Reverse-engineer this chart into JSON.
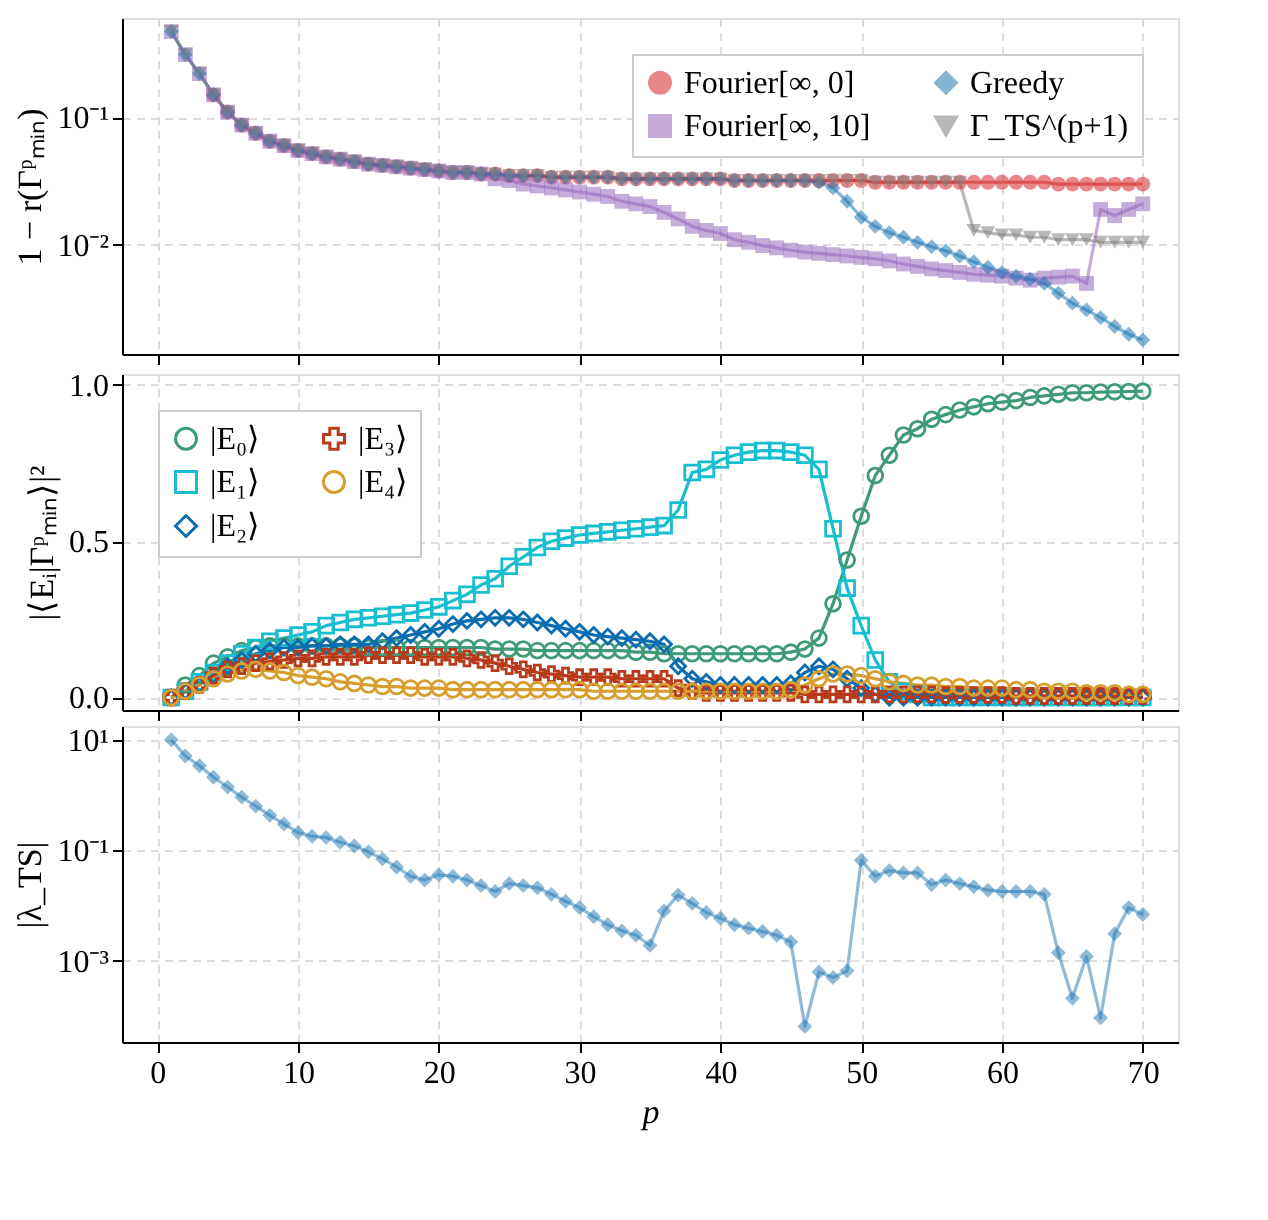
{
  "chart_data": [
    {
      "type": "line",
      "ylabel": "1 − r(Γᵖₘᵢₙ)",
      "log": "y",
      "grid": true,
      "legend": "top right",
      "tick_labels": "y",
      "x": [
        1,
        2,
        3,
        4,
        5,
        6,
        7,
        8,
        9,
        10,
        11,
        12,
        13,
        14,
        15,
        16,
        17,
        18,
        19,
        20,
        21,
        22,
        23,
        24,
        25,
        26,
        27,
        28,
        29,
        30,
        31,
        32,
        33,
        34,
        35,
        36,
        37,
        38,
        39,
        40,
        41,
        42,
        43,
        44,
        45,
        46,
        47,
        48,
        49,
        50,
        51,
        52,
        53,
        54,
        55,
        56,
        57,
        58,
        59,
        60,
        61,
        62,
        63,
        64,
        65,
        66,
        67,
        68,
        69,
        70
      ],
      "xlim": [
        -2.5,
        72.5
      ],
      "xticks": [
        0,
        10,
        20,
        30,
        40,
        50,
        60,
        70
      ],
      "ylim": [
        0.0014,
        0.6
      ],
      "yticks": [
        {
          "value": 0.1,
          "label": "10⁻¹"
        },
        {
          "value": 0.01,
          "label": "10⁻²"
        }
      ],
      "series": [
        {
          "name": "Fourier[∞, 0]",
          "color": "#d62728",
          "marker": "circle",
          "values": [
            null,
            null,
            null,
            0.15,
            0.11,
            0.087,
            0.075,
            0.065,
            0.06,
            0.055,
            0.052,
            0.049,
            0.047,
            0.045,
            0.043,
            0.042,
            0.041,
            0.04,
            0.039,
            0.038,
            0.037,
            0.037,
            0.036,
            0.036,
            0.035,
            0.035,
            0.035,
            0.034,
            0.034,
            0.034,
            0.034,
            0.034,
            0.033,
            0.033,
            0.033,
            0.033,
            0.033,
            0.033,
            0.033,
            0.033,
            0.032,
            0.032,
            0.032,
            0.032,
            0.032,
            0.032,
            0.032,
            0.032,
            0.032,
            0.032,
            0.031,
            0.031,
            0.031,
            0.031,
            0.031,
            0.031,
            0.031,
            0.031,
            0.031,
            0.031,
            0.031,
            0.031,
            0.031,
            0.03,
            0.03,
            0.03,
            0.03,
            0.03,
            0.03,
            0.03
          ]
        },
        {
          "name": "Fourier[∞, 10]",
          "color": "#9467bd",
          "marker": "square",
          "values": [
            0.47,
            0.31,
            0.22,
            0.15,
            0.11,
            0.087,
            0.075,
            0.065,
            0.06,
            0.055,
            0.052,
            0.049,
            0.047,
            0.045,
            0.043,
            0.042,
            0.041,
            0.04,
            0.039,
            0.038,
            0.037,
            0.037,
            0.036,
            0.033,
            0.032,
            0.03,
            0.029,
            0.028,
            0.027,
            0.026,
            0.025,
            0.024,
            0.022,
            0.021,
            0.02,
            0.018,
            0.016,
            0.014,
            0.013,
            0.0123,
            0.011,
            0.0105,
            0.0099,
            0.0095,
            0.0091,
            0.0088,
            0.0086,
            0.0084,
            0.0082,
            0.008,
            0.0078,
            0.0075,
            0.0071,
            0.0068,
            0.0065,
            0.0063,
            0.0061,
            0.0059,
            0.0058,
            0.0057,
            0.0055,
            0.0053,
            0.0055,
            0.0056,
            0.0057,
            0.005,
            0.019,
            0.017,
            0.019,
            0.021
          ]
        },
        {
          "name": "Greedy",
          "color": "#1f77b4",
          "marker": "diamond",
          "values": [
            0.47,
            0.31,
            0.22,
            0.15,
            0.11,
            0.087,
            0.075,
            0.065,
            0.06,
            0.055,
            0.052,
            0.049,
            0.047,
            0.045,
            0.043,
            0.042,
            0.041,
            0.04,
            0.039,
            0.038,
            0.037,
            0.037,
            0.036,
            0.036,
            0.035,
            0.035,
            0.035,
            0.034,
            0.034,
            0.034,
            0.034,
            0.034,
            0.033,
            0.033,
            0.033,
            0.033,
            0.033,
            0.033,
            0.033,
            0.033,
            0.032,
            0.032,
            0.032,
            0.032,
            0.032,
            0.032,
            0.031,
            0.028,
            0.022,
            0.0165,
            0.014,
            0.0125,
            0.0115,
            0.0105,
            0.0097,
            0.009,
            0.0082,
            0.0074,
            0.0067,
            0.0061,
            0.0057,
            0.0054,
            0.005,
            0.0042,
            0.0035,
            0.0031,
            0.0027,
            0.0023,
            0.002,
            0.0018
          ]
        },
        {
          "name": "Γ_TS^(p+1)",
          "color": "#7f7f7f",
          "marker": "triangle",
          "values": [
            0.47,
            0.31,
            0.22,
            0.15,
            0.11,
            0.087,
            0.075,
            0.065,
            0.06,
            0.055,
            0.052,
            0.049,
            0.047,
            0.045,
            0.043,
            0.042,
            0.041,
            0.04,
            0.039,
            0.038,
            0.037,
            0.037,
            0.036,
            0.036,
            0.035,
            0.035,
            0.035,
            0.034,
            0.034,
            0.034,
            0.034,
            0.034,
            0.033,
            0.033,
            0.033,
            0.033,
            0.033,
            0.033,
            0.033,
            0.033,
            0.032,
            0.032,
            0.032,
            0.032,
            0.032,
            0.032,
            0.032,
            0.032,
            0.032,
            0.032,
            0.031,
            0.031,
            0.031,
            0.031,
            0.031,
            0.031,
            0.031,
            0.013,
            0.0125,
            0.012,
            0.012,
            0.0115,
            0.0115,
            0.011,
            0.011,
            0.011,
            0.0105,
            0.0105,
            0.0105,
            0.0105
          ]
        }
      ]
    },
    {
      "type": "line",
      "ylabel": "|⟨Eᵢ|Γᵖₘᵢₙ⟩|²",
      "grid": true,
      "legend": "top left",
      "tick_labels": "y",
      "x": [
        1,
        2,
        3,
        4,
        5,
        6,
        7,
        8,
        9,
        10,
        11,
        12,
        13,
        14,
        15,
        16,
        17,
        18,
        19,
        20,
        21,
        22,
        23,
        24,
        25,
        26,
        27,
        28,
        29,
        30,
        31,
        32,
        33,
        34,
        35,
        36,
        37,
        38,
        39,
        40,
        41,
        42,
        43,
        44,
        45,
        46,
        47,
        48,
        49,
        50,
        51,
        52,
        53,
        54,
        55,
        56,
        57,
        58,
        59,
        60,
        61,
        62,
        63,
        64,
        65,
        66,
        67,
        68,
        69,
        70
      ],
      "xlim": [
        -2.5,
        72.5
      ],
      "xticks": [
        0,
        10,
        20,
        30,
        40,
        50,
        60,
        70
      ],
      "ylim": [
        -0.04,
        1.035
      ],
      "yticks": [
        {
          "value": 0,
          "label": "0.0"
        },
        0.5,
        {
          "value": 1,
          "label": "1.0"
        }
      ],
      "series": [
        {
          "name": "|E₀⟩",
          "color": "#3f9a78",
          "marker": "circle",
          "values": [
            0,
            0.04,
            0.07,
            0.11,
            0.13,
            0.15,
            0.16,
            0.165,
            0.165,
            0.165,
            0.165,
            0.165,
            0.165,
            0.165,
            0.16,
            0.16,
            0.16,
            0.16,
            0.16,
            0.16,
            0.16,
            0.16,
            0.16,
            0.155,
            0.155,
            0.155,
            0.15,
            0.15,
            0.15,
            0.15,
            0.15,
            0.15,
            0.15,
            0.145,
            0.145,
            0.14,
            0.14,
            0.14,
            0.14,
            0.14,
            0.14,
            0.14,
            0.14,
            0.14,
            0.145,
            0.155,
            0.19,
            0.3,
            0.44,
            0.58,
            0.71,
            0.775,
            0.84,
            0.86,
            0.89,
            0.905,
            0.92,
            0.93,
            0.94,
            0.945,
            0.95,
            0.96,
            0.965,
            0.97,
            0.975,
            0.975,
            0.977,
            0.978,
            0.979,
            0.98
          ]
        },
        {
          "name": "|E₁⟩",
          "color": "#17becf",
          "marker": "square",
          "values": [
            0,
            0.02,
            0.05,
            0.08,
            0.11,
            0.14,
            0.16,
            0.18,
            0.19,
            0.2,
            0.21,
            0.23,
            0.24,
            0.25,
            0.255,
            0.26,
            0.265,
            0.27,
            0.28,
            0.29,
            0.31,
            0.33,
            0.36,
            0.38,
            0.42,
            0.45,
            0.48,
            0.5,
            0.51,
            0.52,
            0.525,
            0.53,
            0.535,
            0.54,
            0.545,
            0.55,
            0.6,
            0.72,
            0.73,
            0.76,
            0.775,
            0.785,
            0.79,
            0.79,
            0.785,
            0.775,
            0.73,
            0.54,
            0.35,
            0.23,
            0.12,
            0.05,
            0.02,
            0.01,
            0,
            0,
            0,
            0,
            0,
            0,
            0,
            0,
            0,
            0,
            0,
            0,
            0,
            0,
            0,
            0
          ]
        },
        {
          "name": "|E₂⟩",
          "color": "#0b6db0",
          "marker": "diamond",
          "values": [
            0,
            0.02,
            0.04,
            0.07,
            0.1,
            0.12,
            0.14,
            0.15,
            0.16,
            0.16,
            0.165,
            0.165,
            0.17,
            0.17,
            0.17,
            0.18,
            0.19,
            0.2,
            0.21,
            0.22,
            0.235,
            0.245,
            0.25,
            0.255,
            0.255,
            0.25,
            0.24,
            0.23,
            0.22,
            0.21,
            0.2,
            0.195,
            0.19,
            0.185,
            0.18,
            0.17,
            0.1,
            0.06,
            0.05,
            0.04,
            0.04,
            0.04,
            0.04,
            0.04,
            0.045,
            0.08,
            0.1,
            0.09,
            0.06,
            0.03,
            0.01,
            0,
            0,
            0,
            0,
            0,
            0,
            0,
            0,
            0,
            0,
            0,
            0,
            0,
            0,
            0,
            0,
            0,
            0,
            0
          ]
        },
        {
          "name": "|E₃⟩",
          "color": "#b83a1b",
          "marker": "cross",
          "values": [
            0,
            0.02,
            0.04,
            0.07,
            0.09,
            0.1,
            0.11,
            0.115,
            0.12,
            0.125,
            0.125,
            0.13,
            0.13,
            0.13,
            0.135,
            0.135,
            0.135,
            0.135,
            0.13,
            0.13,
            0.13,
            0.125,
            0.12,
            0.11,
            0.1,
            0.09,
            0.08,
            0.075,
            0.07,
            0.065,
            0.065,
            0.065,
            0.06,
            0.06,
            0.06,
            0.06,
            0.03,
            0.02,
            0.015,
            0.015,
            0.015,
            0.015,
            0.015,
            0.015,
            0.015,
            0.01,
            0.01,
            0.01,
            0.01,
            0.01,
            0.01,
            0.01,
            0.01,
            0.01,
            0.01,
            0.008,
            0.008,
            0.008,
            0.008,
            0.008,
            0.005,
            0.005,
            0.005,
            0.005,
            0.005,
            0.005,
            0.005,
            0.005,
            0.005,
            0.005
          ]
        },
        {
          "name": "|E₄⟩",
          "color": "#d69e2e",
          "marker": "circle",
          "values": [
            0,
            0.02,
            0.04,
            0.06,
            0.075,
            0.085,
            0.09,
            0.085,
            0.08,
            0.07,
            0.065,
            0.06,
            0.05,
            0.045,
            0.04,
            0.035,
            0.035,
            0.03,
            0.03,
            0.03,
            0.025,
            0.025,
            0.025,
            0.025,
            0.025,
            0.025,
            0.025,
            0.025,
            0.025,
            0.025,
            0.02,
            0.02,
            0.02,
            0.02,
            0.02,
            0.02,
            0.02,
            0.02,
            0.02,
            0.02,
            0.02,
            0.02,
            0.02,
            0.02,
            0.025,
            0.04,
            0.06,
            0.075,
            0.075,
            0.07,
            0.06,
            0.05,
            0.045,
            0.04,
            0.04,
            0.035,
            0.035,
            0.03,
            0.03,
            0.03,
            0.025,
            0.025,
            0.02,
            0.02,
            0.02,
            0.015,
            0.015,
            0.015,
            0.01,
            0.01
          ]
        }
      ]
    },
    {
      "type": "line",
      "xlabel": "p",
      "ylabel": "|λ_TS|",
      "log": "y",
      "grid": true,
      "x": [
        1,
        2,
        3,
        4,
        5,
        6,
        7,
        8,
        9,
        10,
        11,
        12,
        13,
        14,
        15,
        16,
        17,
        18,
        19,
        20,
        21,
        22,
        23,
        24,
        25,
        26,
        27,
        28,
        29,
        30,
        31,
        32,
        33,
        34,
        35,
        36,
        37,
        38,
        39,
        40,
        41,
        42,
        43,
        44,
        45,
        46,
        47,
        48,
        49,
        50,
        51,
        52,
        53,
        54,
        55,
        56,
        57,
        58,
        59,
        60,
        61,
        62,
        63,
        64,
        65,
        66,
        67,
        68,
        69,
        70
      ],
      "xlim": [
        -2.5,
        72.5
      ],
      "xticks": [
        0,
        10,
        20,
        30,
        40,
        50,
        60,
        70
      ],
      "ylim": [
        3.4e-05,
        17.8
      ],
      "yticks": [
        {
          "value": 10,
          "label": "10¹"
        },
        {
          "value": 0.1,
          "label": "10⁻¹"
        },
        {
          "value": 0.001,
          "label": "10⁻³"
        }
      ],
      "series": [
        {
          "color": "#1f77b4",
          "marker": "diamond",
          "values": [
            10,
            5.1,
            3.4,
            2.1,
            1.4,
            0.92,
            0.63,
            0.43,
            0.3,
            0.21,
            0.18,
            0.17,
            0.14,
            0.12,
            0.094,
            0.07,
            0.05,
            0.034,
            0.029,
            0.036,
            0.034,
            0.029,
            0.023,
            0.018,
            0.025,
            0.023,
            0.021,
            0.016,
            0.012,
            0.0092,
            0.0063,
            0.0045,
            0.0035,
            0.0029,
            0.0019,
            0.008,
            0.0155,
            0.011,
            0.0075,
            0.0059,
            0.0045,
            0.0039,
            0.0034,
            0.0029,
            0.0022,
            6.5e-05,
            0.00063,
            0.0005,
            0.00066,
            0.066,
            0.034,
            0.043,
            0.039,
            0.039,
            0.024,
            0.029,
            0.025,
            0.022,
            0.019,
            0.018,
            0.018,
            0.018,
            0.016,
            0.0014,
            0.00021,
            0.0012,
            9.3e-05,
            0.0031,
            0.0092,
            0.0069
          ]
        }
      ]
    }
  ]
}
